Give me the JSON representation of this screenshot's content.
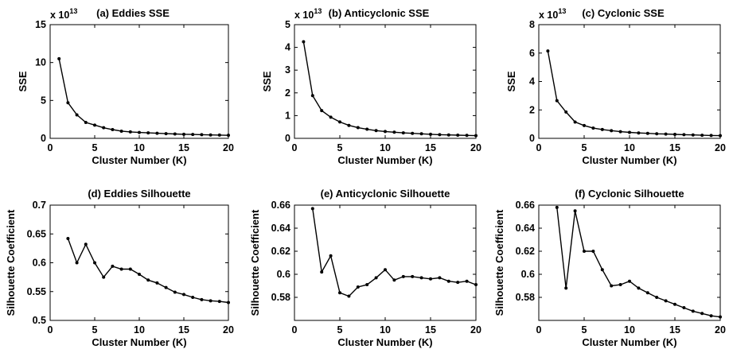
{
  "chart_data": [
    {
      "type": "line",
      "title": "(a) Eddies SSE",
      "xlabel": "Cluster Number (K)",
      "ylabel": "SSE",
      "exponent": "13",
      "xlim": [
        0,
        20
      ],
      "ylim": [
        0,
        15
      ],
      "xticks": [
        0,
        5,
        10,
        15,
        20
      ],
      "yticks": [
        0,
        5,
        10,
        15
      ],
      "x": [
        1,
        2,
        3,
        4,
        5,
        6,
        7,
        8,
        9,
        10,
        11,
        12,
        13,
        14,
        15,
        16,
        17,
        18,
        19,
        20
      ],
      "y": [
        10.5,
        4.7,
        3.1,
        2.1,
        1.75,
        1.4,
        1.15,
        0.95,
        0.85,
        0.78,
        0.72,
        0.67,
        0.62,
        0.58,
        0.54,
        0.51,
        0.48,
        0.45,
        0.43,
        0.4
      ]
    },
    {
      "type": "line",
      "title": "(b) Anticyclonic SSE",
      "xlabel": "Cluster Number (K)",
      "ylabel": "SSE",
      "exponent": "13",
      "xlim": [
        0,
        20
      ],
      "ylim": [
        0,
        5
      ],
      "xticks": [
        0,
        5,
        10,
        15,
        20
      ],
      "yticks": [
        0,
        1,
        2,
        3,
        4,
        5
      ],
      "x": [
        1,
        2,
        3,
        4,
        5,
        6,
        7,
        8,
        9,
        10,
        11,
        12,
        13,
        14,
        15,
        16,
        17,
        18,
        19,
        20
      ],
      "y": [
        4.25,
        1.88,
        1.22,
        0.93,
        0.72,
        0.57,
        0.47,
        0.4,
        0.34,
        0.3,
        0.27,
        0.24,
        0.22,
        0.2,
        0.18,
        0.16,
        0.15,
        0.14,
        0.13,
        0.12
      ]
    },
    {
      "type": "line",
      "title": "(c) Cyclonic SSE",
      "xlabel": "Cluster Number (K)",
      "ylabel": "SSE",
      "exponent": "13",
      "xlim": [
        0,
        20
      ],
      "ylim": [
        0,
        8
      ],
      "xticks": [
        0,
        5,
        10,
        15,
        20
      ],
      "yticks": [
        0,
        2,
        4,
        6,
        8
      ],
      "x": [
        1,
        2,
        3,
        4,
        5,
        6,
        7,
        8,
        9,
        10,
        11,
        12,
        13,
        14,
        15,
        16,
        17,
        18,
        19,
        20
      ],
      "y": [
        6.15,
        2.65,
        1.85,
        1.15,
        0.9,
        0.72,
        0.62,
        0.54,
        0.47,
        0.42,
        0.38,
        0.35,
        0.32,
        0.3,
        0.28,
        0.26,
        0.24,
        0.22,
        0.2,
        0.19
      ]
    },
    {
      "type": "line",
      "title": "(d) Eddies Silhouette",
      "xlabel": "Cluster Number (K)",
      "ylabel": "Silhouette Coefficient",
      "xlim": [
        0,
        20
      ],
      "ylim": [
        0.5,
        0.7
      ],
      "xticks": [
        0,
        5,
        10,
        15,
        20
      ],
      "yticks": [
        0.5,
        0.55,
        0.6,
        0.65,
        0.7
      ],
      "x": [
        2,
        3,
        4,
        5,
        6,
        7,
        8,
        9,
        10,
        11,
        12,
        13,
        14,
        15,
        16,
        17,
        18,
        19,
        20
      ],
      "y": [
        0.642,
        0.6,
        0.632,
        0.6,
        0.575,
        0.594,
        0.589,
        0.589,
        0.58,
        0.57,
        0.565,
        0.557,
        0.549,
        0.545,
        0.54,
        0.536,
        0.534,
        0.533,
        0.531
      ]
    },
    {
      "type": "line",
      "title": "(e) Anticyclonic Silhouette",
      "xlabel": "Cluster Number (K)",
      "ylabel": "Silhouette Coefficient",
      "xlim": [
        0,
        20
      ],
      "ylim": [
        0.56,
        0.66
      ],
      "xticks": [
        0,
        5,
        10,
        15,
        20
      ],
      "yticks": [
        0.58,
        0.6,
        0.62,
        0.64,
        0.66
      ],
      "x": [
        2,
        3,
        4,
        5,
        6,
        7,
        8,
        9,
        10,
        11,
        12,
        13,
        14,
        15,
        16,
        17,
        18,
        19,
        20
      ],
      "y": [
        0.657,
        0.602,
        0.616,
        0.584,
        0.581,
        0.589,
        0.591,
        0.597,
        0.604,
        0.595,
        0.598,
        0.598,
        0.597,
        0.596,
        0.597,
        0.594,
        0.593,
        0.594,
        0.591
      ]
    },
    {
      "type": "line",
      "title": "(f) Cyclonic Silhouette",
      "xlabel": "Cluster Number (K)",
      "ylabel": "Silhouette Coefficient",
      "xlim": [
        0,
        20
      ],
      "ylim": [
        0.56,
        0.66
      ],
      "xticks": [
        0,
        5,
        10,
        15,
        20
      ],
      "yticks": [
        0.58,
        0.6,
        0.62,
        0.64,
        0.66
      ],
      "x": [
        2,
        3,
        4,
        5,
        6,
        7,
        8,
        9,
        10,
        11,
        12,
        13,
        14,
        15,
        16,
        17,
        18,
        19,
        20
      ],
      "y": [
        0.658,
        0.588,
        0.655,
        0.62,
        0.62,
        0.604,
        0.59,
        0.591,
        0.594,
        0.588,
        0.584,
        0.58,
        0.577,
        0.574,
        0.571,
        0.568,
        0.566,
        0.564,
        0.563
      ]
    }
  ]
}
